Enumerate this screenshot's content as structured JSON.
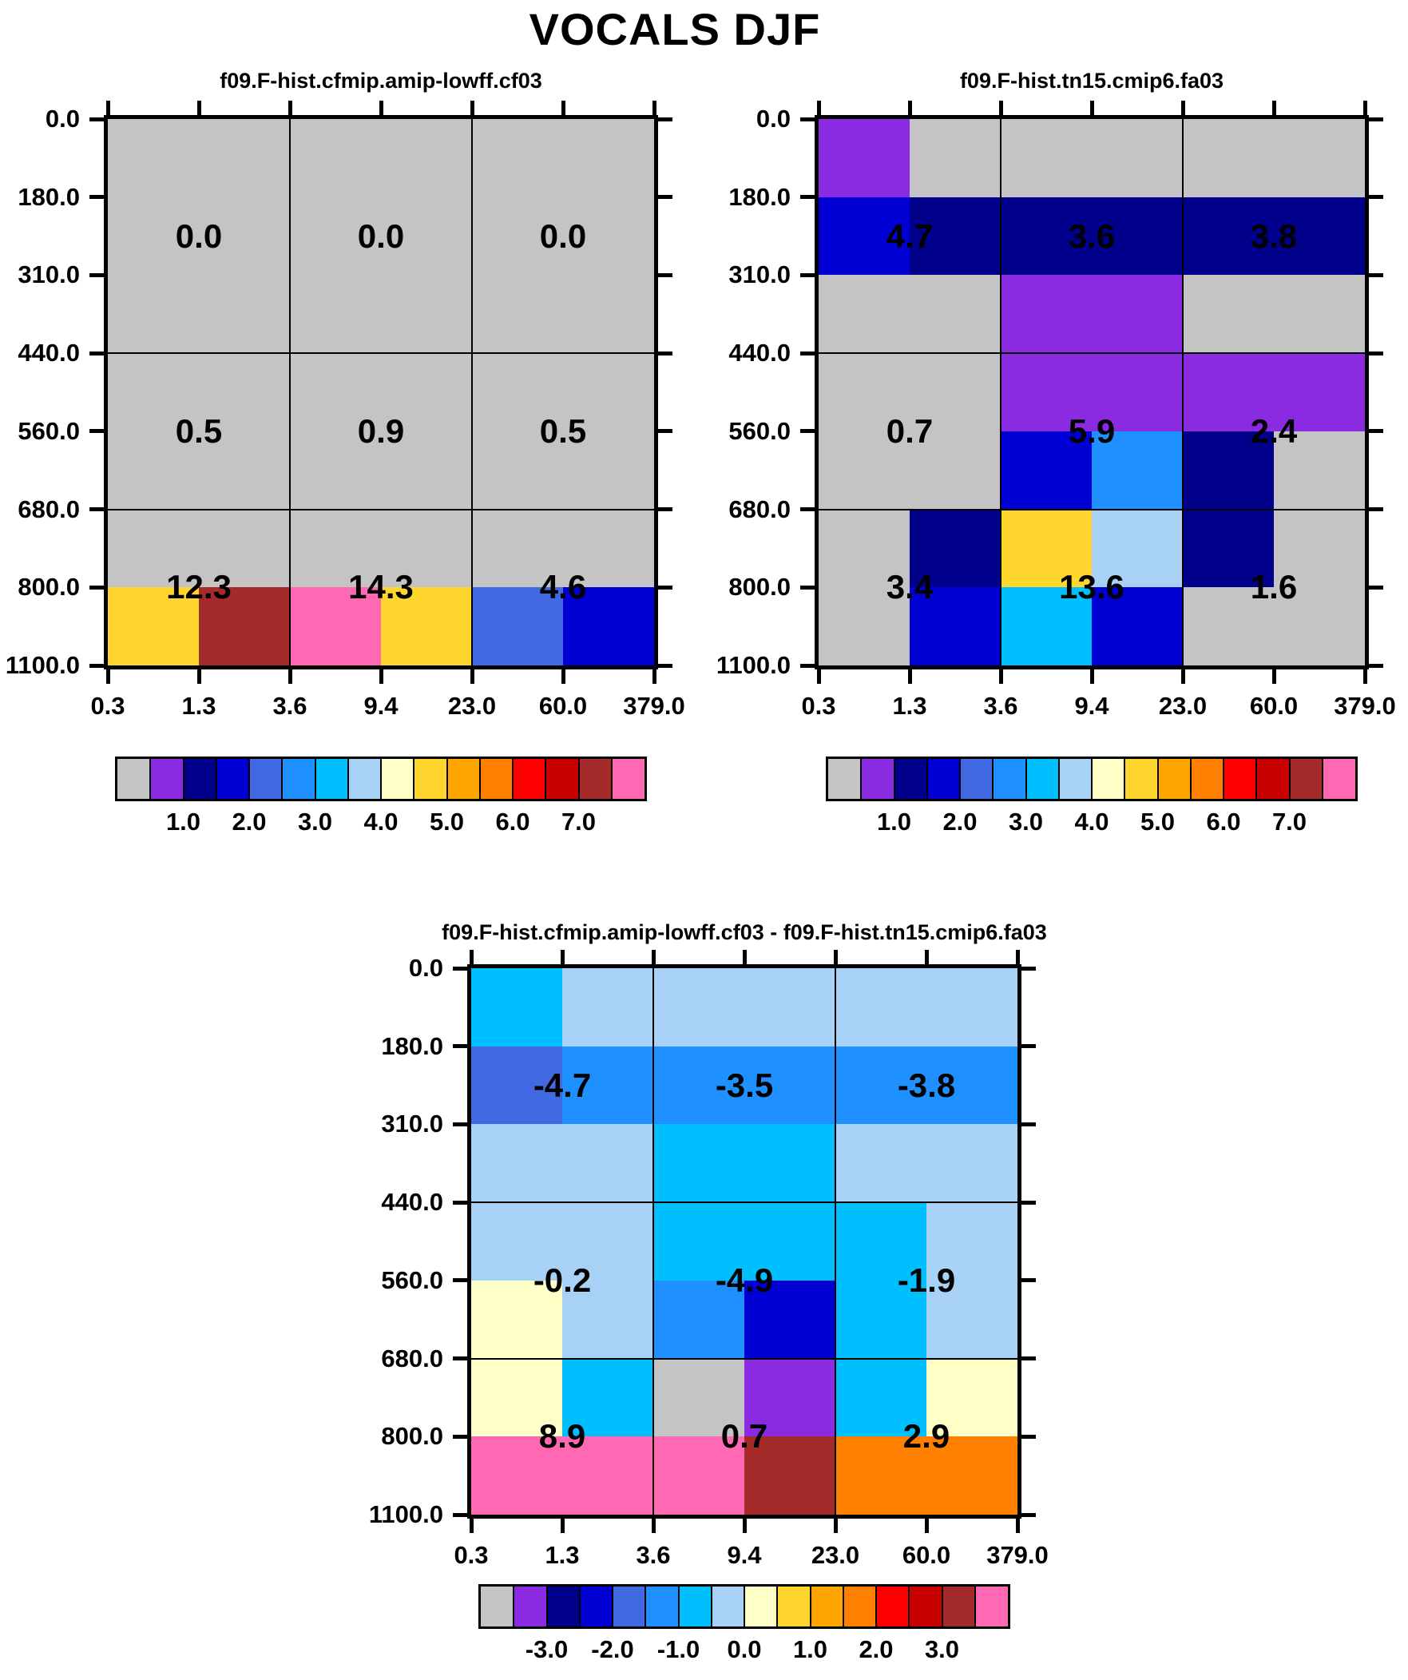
{
  "figure_title": "VOCALS DJF",
  "palette": {
    "gray": "#C4C4C4",
    "purple": "#8A2BE2",
    "navy": "#00008B",
    "blue": "#0000D5",
    "royal": "#4169E1",
    "dodger": "#1E90FF",
    "cyan": "#00BFFF",
    "lightblue": "#A8D2F5",
    "paleyellow": "#FFFFC8",
    "gold": "#FFD62E",
    "orange": "#FFA500",
    "darkorange": "#FF7F00",
    "red": "#FF0000",
    "darkred": "#C80000",
    "brown": "#A52A2A",
    "pink": "#FF69B4"
  },
  "colorbar_colors": [
    "gray",
    "purple",
    "navy",
    "blue",
    "royal",
    "dodger",
    "cyan",
    "lightblue",
    "paleyellow",
    "gold",
    "orange",
    "darkorange",
    "red",
    "darkred",
    "brown",
    "pink"
  ],
  "chart_data": [
    {
      "type": "heatmap",
      "title": "f09.F-hist.cfmip.amip-lowff.cf03",
      "x_tick_labels": [
        "0.3",
        "1.3",
        "3.6",
        "9.4",
        "23.0",
        "60.0",
        "379.0"
      ],
      "y_tick_labels": [
        "0.0",
        "180.0",
        "310.0",
        "440.0",
        "560.0",
        "680.0",
        "800.0",
        "1100.0"
      ],
      "cells": [
        [
          "gray",
          "gray",
          "gray",
          "gray",
          "gray",
          "gray"
        ],
        [
          "gray",
          "gray",
          "gray",
          "gray",
          "gray",
          "gray"
        ],
        [
          "gray",
          "gray",
          "gray",
          "gray",
          "gray",
          "gray"
        ],
        [
          "gray",
          "gray",
          "gray",
          "gray",
          "gray",
          "gray"
        ],
        [
          "gray",
          "gray",
          "gray",
          "gray",
          "gray",
          "gray"
        ],
        [
          "gray",
          "gray",
          "gray",
          "gray",
          "gray",
          "gray"
        ],
        [
          "gold",
          "brown",
          "pink",
          "gold",
          "royal",
          "blue"
        ]
      ],
      "block_values": [
        [
          "0.0",
          "0.0",
          "0.0"
        ],
        [
          "0.5",
          "0.9",
          "0.5"
        ],
        [
          "12.3",
          "14.3",
          "4.6"
        ]
      ],
      "colorbar_ticks": [
        "1.0",
        "2.0",
        "3.0",
        "4.0",
        "5.0",
        "6.0",
        "7.0"
      ]
    },
    {
      "type": "heatmap",
      "title": "f09.F-hist.tn15.cmip6.fa03",
      "x_tick_labels": [
        "0.3",
        "1.3",
        "3.6",
        "9.4",
        "23.0",
        "60.0",
        "379.0"
      ],
      "y_tick_labels": [
        "0.0",
        "180.0",
        "310.0",
        "440.0",
        "560.0",
        "680.0",
        "800.0",
        "1100.0"
      ],
      "cells": [
        [
          "purple",
          "gray",
          "gray",
          "gray",
          "gray",
          "gray"
        ],
        [
          "blue",
          "navy",
          "navy",
          "navy",
          "navy",
          "navy"
        ],
        [
          "gray",
          "gray",
          "purple",
          "purple",
          "gray",
          "gray"
        ],
        [
          "gray",
          "gray",
          "purple",
          "purple",
          "purple",
          "purple"
        ],
        [
          "gray",
          "gray",
          "blue",
          "dodger",
          "navy",
          "gray"
        ],
        [
          "gray",
          "navy",
          "gold",
          "lightblue",
          "navy",
          "gray"
        ],
        [
          "gray",
          "blue",
          "cyan",
          "blue",
          "gray",
          "gray"
        ]
      ],
      "block_values": [
        [
          "4.7",
          "3.6",
          "3.8"
        ],
        [
          "0.7",
          "5.9",
          "2.4"
        ],
        [
          "3.4",
          "13.6",
          "1.6"
        ]
      ],
      "colorbar_ticks": [
        "1.0",
        "2.0",
        "3.0",
        "4.0",
        "5.0",
        "6.0",
        "7.0"
      ]
    },
    {
      "type": "heatmap",
      "title": "f09.F-hist.cfmip.amip-lowff.cf03 - f09.F-hist.tn15.cmip6.fa03",
      "x_tick_labels": [
        "0.3",
        "1.3",
        "3.6",
        "9.4",
        "23.0",
        "60.0",
        "379.0"
      ],
      "y_tick_labels": [
        "0.0",
        "180.0",
        "310.0",
        "440.0",
        "560.0",
        "680.0",
        "800.0",
        "1100.0"
      ],
      "cells": [
        [
          "cyan",
          "lightblue",
          "lightblue",
          "lightblue",
          "lightblue",
          "lightblue"
        ],
        [
          "royal",
          "dodger",
          "dodger",
          "dodger",
          "dodger",
          "dodger"
        ],
        [
          "lightblue",
          "lightblue",
          "cyan",
          "cyan",
          "lightblue",
          "lightblue"
        ],
        [
          "lightblue",
          "lightblue",
          "cyan",
          "cyan",
          "cyan",
          "lightblue"
        ],
        [
          "paleyellow",
          "lightblue",
          "dodger",
          "blue",
          "cyan",
          "lightblue"
        ],
        [
          "paleyellow",
          "cyan",
          "gray",
          "purple",
          "cyan",
          "paleyellow"
        ],
        [
          "pink",
          "pink",
          "pink",
          "brown",
          "darkorange",
          "darkorange"
        ]
      ],
      "block_values": [
        [
          "-4.7",
          "-3.5",
          "-3.8"
        ],
        [
          "-0.2",
          "-4.9",
          "-1.9"
        ],
        [
          "8.9",
          "0.7",
          "2.9"
        ]
      ],
      "colorbar_ticks": [
        "-3.0",
        "-2.0",
        "-1.0",
        "0.0",
        "1.0",
        "2.0",
        "3.0"
      ]
    }
  ]
}
